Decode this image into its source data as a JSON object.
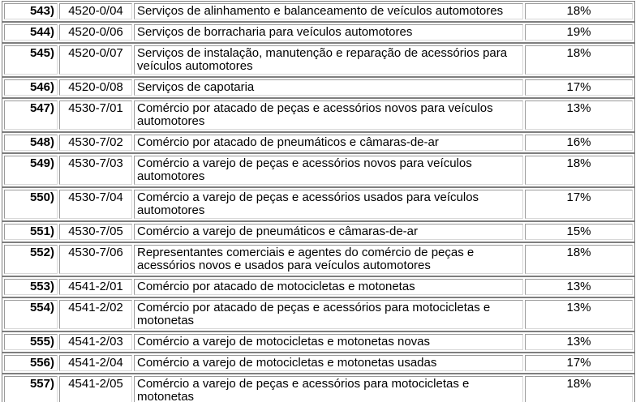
{
  "colors": {
    "frame_border": "#7e7e7e",
    "cell_border_dark": "#9a9a9a",
    "cell_border_light": "#d8d8d8",
    "text": "#000000",
    "background": "#ffffff"
  },
  "rows": [
    {
      "item": "543)",
      "code": "4520-0/04",
      "description": "Serviços de alinhamento e balanceamento de veículos automotores",
      "rate": "18%"
    },
    {
      "item": "544)",
      "code": "4520-0/06",
      "description": "Serviços de borracharia para veículos automotores",
      "rate": "19%"
    },
    {
      "item": "545)",
      "code": "4520-0/07",
      "description": "Serviços de instalação, manutenção e reparação de acessórios para veículos automotores",
      "rate": "18%"
    },
    {
      "item": "546)",
      "code": "4520-0/08",
      "description": "Serviços de capotaria",
      "rate": "17%"
    },
    {
      "item": "547)",
      "code": "4530-7/01",
      "description": "Comércio por atacado de peças e acessórios novos para veículos automotores",
      "rate": "13%"
    },
    {
      "item": "548)",
      "code": "4530-7/02",
      "description": "Comércio por atacado de pneumáticos e câmaras-de-ar",
      "rate": "16%"
    },
    {
      "item": "549)",
      "code": "4530-7/03",
      "description": "Comércio a varejo de peças e acessórios novos para veículos automotores",
      "rate": "18%"
    },
    {
      "item": "550)",
      "code": "4530-7/04",
      "description": "Comércio a varejo de peças e acessórios usados para veículos automotores",
      "rate": "17%"
    },
    {
      "item": "551)",
      "code": "4530-7/05",
      "description": "Comércio a varejo de pneumáticos e câmaras-de-ar",
      "rate": "15%"
    },
    {
      "item": "552)",
      "code": "4530-7/06",
      "description": "Representantes comerciais e agentes do comércio de peças e acessórios novos e usados para veículos automotores",
      "rate": "18%"
    },
    {
      "item": "553)",
      "code": "4541-2/01",
      "description": "Comércio por atacado de motocicletas e motonetas",
      "rate": "13%"
    },
    {
      "item": "554)",
      "code": "4541-2/02",
      "description": "Comércio por atacado de peças e acessórios para motocicletas e motonetas",
      "rate": "13%"
    },
    {
      "item": "555)",
      "code": "4541-2/03",
      "description": "Comércio a varejo de motocicletas e motonetas novas",
      "rate": "13%"
    },
    {
      "item": "556)",
      "code": "4541-2/04",
      "description": "Comércio a varejo de motocicletas e motonetas usadas",
      "rate": "17%"
    },
    {
      "item": "557)",
      "code": "4541-2/05",
      "description": "Comércio a varejo de peças e acessórios para motocicletas e motonetas",
      "rate": "18%"
    }
  ]
}
